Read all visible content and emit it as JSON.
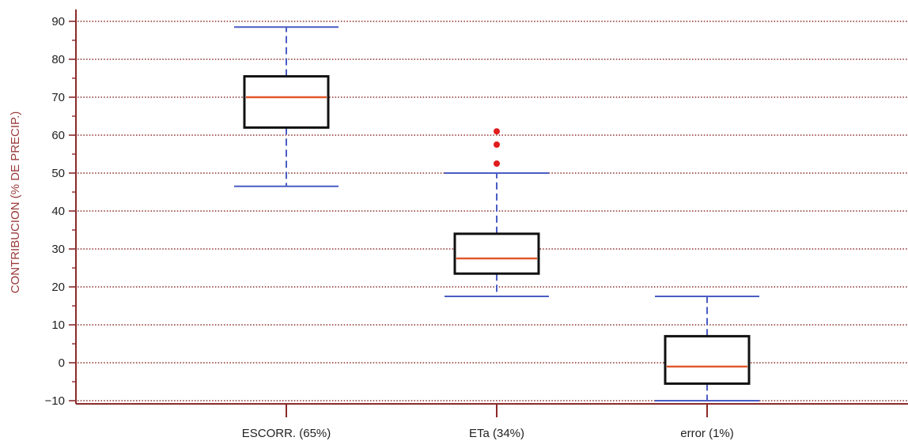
{
  "chart_data": {
    "type": "boxplot",
    "ylabel": "CONTRIBUCION (% DE PRECIP.)",
    "ylim": [
      -10,
      90
    ],
    "yticks": [
      -10,
      0,
      10,
      20,
      30,
      40,
      50,
      60,
      70,
      80,
      90
    ],
    "ytick_labels": [
      "−10",
      "0",
      "10",
      "20",
      "30",
      "40",
      "50",
      "60",
      "70",
      "80",
      "90"
    ],
    "grid": true,
    "categories": [
      "ESCORR. (65%)",
      "ETa (34%)",
      "error (1%)"
    ],
    "boxes": [
      {
        "category": "ESCORR. (65%)",
        "whisker_low": 46.5,
        "q1": 62,
        "median": 70,
        "q3": 75.5,
        "whisker_high": 88.5,
        "outliers": []
      },
      {
        "category": "ETa (34%)",
        "whisker_low": 17.5,
        "q1": 23.5,
        "median": 27.5,
        "q3": 34,
        "whisker_high": 50,
        "outliers": [
          52.5,
          57.5,
          61
        ]
      },
      {
        "category": "error (1%)",
        "whisker_low": -10,
        "q1": -5.5,
        "median": -1,
        "q3": 7,
        "whisker_high": 17.5,
        "outliers": []
      }
    ],
    "colors": {
      "axis": "#8a2a2a",
      "grid": "#8a2a2a",
      "box": "#111111",
      "median": "#e2582b",
      "whisker": "#4a5cc4",
      "outlier": "#e01c1c",
      "ylabel": "#9a3a3a"
    }
  }
}
